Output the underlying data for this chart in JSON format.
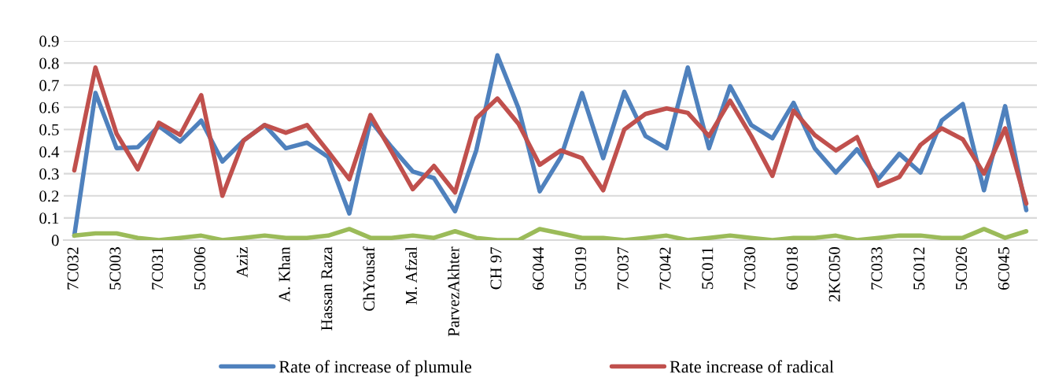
{
  "chart_data": {
    "type": "line",
    "categories": [
      "7C032",
      null,
      "5C003",
      null,
      "7C031",
      null,
      "5C006",
      null,
      "Aziz",
      null,
      "A. Khan",
      null,
      "Hassan Raza",
      null,
      "ChYousaf",
      null,
      "M. Afzal",
      null,
      "ParvezAkhter",
      null,
      "CH 97",
      null,
      "6C044",
      null,
      "5C019",
      null,
      "7C037",
      null,
      "7C042",
      null,
      "5C011",
      null,
      "7C030",
      null,
      "6C018",
      null,
      "2KC050",
      null,
      "7C033",
      null,
      "5C012",
      null,
      "5C026",
      null,
      "6C045",
      null
    ],
    "series": [
      {
        "name": "Rate of increase of plumule",
        "color": "#4f81bd",
        "values": [
          0.02,
          0.665,
          0.415,
          0.42,
          0.515,
          0.445,
          0.54,
          0.355,
          0.45,
          0.52,
          0.415,
          0.44,
          0.375,
          0.12,
          0.54,
          0.42,
          0.31,
          0.28,
          0.13,
          0.405,
          0.835,
          0.595,
          0.22,
          0.375,
          0.665,
          0.37,
          0.67,
          0.47,
          0.415,
          0.78,
          0.415,
          0.695,
          0.52,
          0.46,
          0.62,
          0.415,
          0.305,
          0.41,
          0.275,
          0.39,
          0.305,
          0.54,
          0.615,
          0.225,
          0.605,
          0.135
        ]
      },
      {
        "name": "Rate increase of radical",
        "color": "#c0504d",
        "values": [
          0.315,
          0.78,
          0.48,
          0.32,
          0.53,
          0.475,
          0.655,
          0.2,
          0.45,
          0.52,
          0.485,
          0.52,
          0.4,
          0.275,
          0.565,
          0.4,
          0.23,
          0.335,
          0.215,
          0.55,
          0.64,
          0.525,
          0.34,
          0.405,
          0.37,
          0.225,
          0.5,
          0.57,
          0.595,
          0.575,
          0.47,
          0.63,
          0.47,
          0.29,
          0.585,
          0.475,
          0.405,
          0.465,
          0.245,
          0.285,
          0.43,
          0.505,
          0.455,
          0.3,
          0.505,
          0.165
        ]
      },
      {
        "color": "#9bbb59",
        "values": [
          0.02,
          0.03,
          0.03,
          0.01,
          0.0,
          0.01,
          0.02,
          0.0,
          0.01,
          0.02,
          0.01,
          0.01,
          0.02,
          0.05,
          0.01,
          0.01,
          0.02,
          0.01,
          0.04,
          0.01,
          0.0,
          0.0,
          0.05,
          0.03,
          0.01,
          0.01,
          0.0,
          0.01,
          0.02,
          0.0,
          0.01,
          0.02,
          0.01,
          0.0,
          0.01,
          0.01,
          0.02,
          0.0,
          0.01,
          0.02,
          0.02,
          0.01,
          0.01,
          0.05,
          0.01,
          0.04
        ]
      }
    ],
    "ylim": [
      0,
      0.9
    ],
    "yticks": [
      0,
      0.1,
      0.2,
      0.3,
      0.4,
      0.5,
      0.6,
      0.7,
      0.8,
      0.9
    ],
    "grid": "y",
    "legend": "bottom",
    "marker": "none",
    "line_style": "solid"
  }
}
